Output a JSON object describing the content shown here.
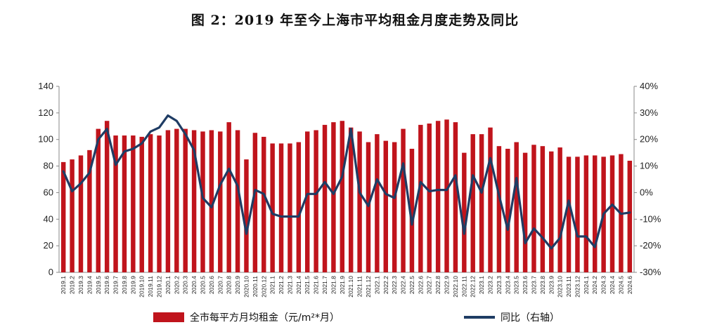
{
  "chart_data": {
    "type": "bar+line",
    "title": "图 2：2019 年至今上海市平均租金月度走势及同比",
    "categories": [
      "2019.1",
      "2019.2",
      "2019.3",
      "2019.4",
      "2019.5",
      "2019.6",
      "2019.7",
      "2019.8",
      "2019.9",
      "2019.10",
      "2019.11",
      "2019.12",
      "2020.1",
      "2020.2",
      "2020.3",
      "2020.4",
      "2020.5",
      "2020.6",
      "2020.7",
      "2020.8",
      "2020.9",
      "2020.10",
      "2020.11",
      "2020.12",
      "2021.1",
      "2021.2",
      "2021.3",
      "2021.4",
      "2021.5",
      "2021.6",
      "2021.7",
      "2021.8",
      "2021.9",
      "2021.10",
      "2021.11",
      "2021.12",
      "2022.1",
      "2022.2",
      "2022.3",
      "2022.4",
      "2022.5",
      "2022.6",
      "2022.7",
      "2022.8",
      "2022.9",
      "2022.10",
      "2022.11",
      "2022.12",
      "2023.1",
      "2023.2",
      "2023.3",
      "2023.4",
      "2023.5",
      "2023.6",
      "2023.7",
      "2023.8",
      "2023.9",
      "2023.10",
      "2023.11",
      "2023.12",
      "2024.1",
      "2024.2",
      "2024.3",
      "2024.4",
      "2024.5",
      "2024.6"
    ],
    "series": [
      {
        "name": "全市每平方月均租金（元/m²*月）",
        "axis": "left",
        "type": "bar",
        "color": "#c0141c",
        "values": [
          83,
          85,
          88,
          92,
          108,
          114,
          103,
          103,
          103,
          102,
          104,
          103,
          107,
          108,
          108,
          107,
          106,
          107,
          106,
          113,
          107,
          85,
          105,
          102,
          97,
          97,
          97,
          98,
          106,
          107,
          111,
          113,
          114,
          109,
          106,
          98,
          104,
          99,
          98,
          108,
          93,
          111,
          112,
          114,
          115,
          113,
          90,
          104,
          104,
          109,
          95,
          93,
          98,
          90,
          96,
          95,
          91,
          94,
          87,
          87,
          88,
          88,
          87,
          88,
          89,
          84
        ]
      },
      {
        "name": "同比（右轴）",
        "axis": "right",
        "type": "line",
        "color": "#1f3c64",
        "values": [
          8,
          0.5,
          3.5,
          7.5,
          20,
          24,
          10.5,
          15.5,
          16.5,
          18.5,
          23,
          24.5,
          29,
          27,
          22,
          16,
          -2,
          -5.5,
          3,
          9,
          2.5,
          -15.5,
          1,
          -0.5,
          -8,
          -9,
          -9,
          -9,
          -0.5,
          -0.5,
          4,
          -0.5,
          6,
          24,
          0,
          -5,
          5,
          -0.5,
          -2,
          11,
          -12,
          4,
          0.5,
          1,
          1,
          6.5,
          -15.5,
          6.5,
          0,
          13,
          -1,
          -14,
          5.5,
          -19,
          -13.5,
          -17,
          -21,
          -17,
          -3,
          -16.5,
          -16.5,
          -20.5,
          -8,
          -4.5,
          -8,
          -7.5
        ]
      }
    ],
    "ylim_left": [
      0,
      140
    ],
    "yticks_left": [
      "0",
      "20",
      "40",
      "60",
      "80",
      "100",
      "120",
      "140"
    ],
    "ylim_right": [
      -30,
      40
    ],
    "yticks_right": [
      "-30%",
      "-20%",
      "-10%",
      "0%",
      "10%",
      "20%",
      "30%",
      "40%"
    ],
    "grid": false,
    "legend_position": "bottom"
  }
}
